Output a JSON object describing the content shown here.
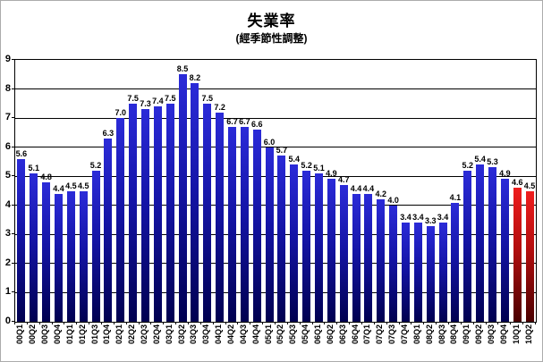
{
  "page": {
    "background": "#ffffff",
    "border_color": "#ababab"
  },
  "chart_data": {
    "type": "bar",
    "title": "失業率",
    "subtitle": "(經季節性調整)",
    "categories": [
      "00Q1",
      "00Q2",
      "00Q3",
      "00Q4",
      "01Q1",
      "01Q2",
      "01Q3",
      "01Q4",
      "02Q1",
      "02Q2",
      "02Q3",
      "02Q4",
      "03Q1",
      "03Q2",
      "03Q3",
      "03Q4",
      "04Q1",
      "04Q2",
      "04Q3",
      "04Q4",
      "05Q1",
      "05Q2",
      "05Q3",
      "05Q4",
      "06Q1",
      "06Q2",
      "06Q3",
      "06Q4",
      "07Q1",
      "07Q2",
      "07Q3",
      "07Q4",
      "08Q1",
      "08Q2",
      "08Q3",
      "08Q4",
      "09Q1",
      "09Q2",
      "09Q3",
      "09Q4",
      "10Q1",
      "10Q2"
    ],
    "values": [
      5.6,
      5.1,
      4.8,
      4.4,
      4.5,
      4.5,
      5.2,
      6.3,
      7.0,
      7.5,
      7.3,
      7.4,
      7.5,
      8.5,
      8.2,
      7.5,
      7.2,
      6.7,
      6.7,
      6.6,
      6.0,
      5.7,
      5.4,
      5.2,
      5.1,
      4.9,
      4.7,
      4.4,
      4.4,
      4.2,
      4.0,
      3.4,
      3.4,
      3.3,
      3.4,
      4.1,
      5.2,
      5.4,
      5.3,
      4.9,
      4.6,
      4.5
    ],
    "value_labels_shown": true,
    "value_label_decimals": 1,
    "xlabel": "",
    "ylabel": "",
    "ylim": [
      0,
      9
    ],
    "ytick_interval": 1,
    "grid": true,
    "legend": "none",
    "axis_color": "#000000",
    "bar_style": {
      "default_top": "#2b2bd8",
      "default_mid": "#1414a6",
      "default_bottom": "#000050",
      "highlight_top": "#ef1d1d",
      "highlight_mid": "#b30e0e",
      "highlight_bottom": "#4a0000",
      "highlighted_categories": [
        "10Q1",
        "10Q2"
      ]
    }
  }
}
